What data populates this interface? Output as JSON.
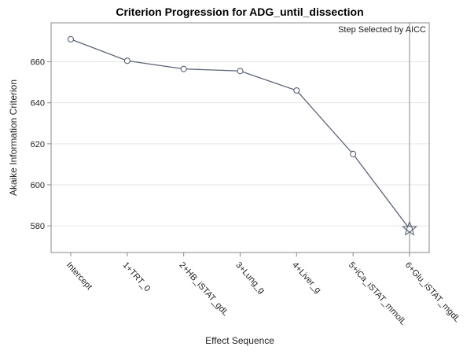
{
  "chart_data": {
    "type": "line",
    "title": "Criterion Progression for ADG_until_dissection",
    "xlabel": "Effect Sequence",
    "ylabel": "Akaike Information Criterion",
    "categories": [
      "Intercept",
      "1+TRT_0",
      "2+HB_iSTAT_gdL",
      "3+Lung_g",
      "4+Liver_g",
      "5+iCa_iSTAT_mmolL",
      "6+Glu_iSTAT_mgdL"
    ],
    "values": [
      671,
      660.5,
      656.5,
      655.5,
      646,
      615,
      578.5
    ],
    "ylim": [
      567,
      679
    ],
    "yticks": [
      580,
      600,
      620,
      640,
      660
    ],
    "grid": true,
    "selected_index": 6,
    "annotation": "Step Selected by AICC",
    "colors": {
      "line": "#5a6378",
      "marker": "#5a6378",
      "grid": "#e6e6e6",
      "frame": "#8a8a8a",
      "ref_line": "#8a8a8a"
    }
  }
}
